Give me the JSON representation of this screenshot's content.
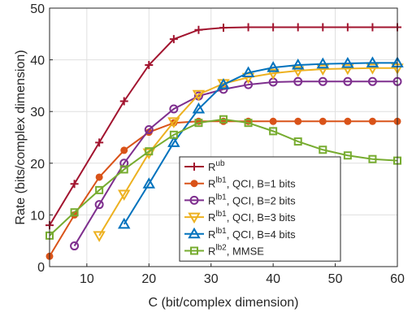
{
  "chart_data": {
    "type": "line",
    "title": "",
    "xlabel": "C (bit/complex dimension)",
    "ylabel": "Rate (bits/complex dimension)",
    "xlim": [
      4,
      60
    ],
    "ylim": [
      0,
      50
    ],
    "xticks": [
      10,
      20,
      30,
      40,
      50,
      60
    ],
    "yticks": [
      0,
      10,
      20,
      30,
      40,
      50
    ],
    "grid": true,
    "legend_position": "bottom-center",
    "series": [
      {
        "name_base": "R",
        "name_sup": "ub",
        "name_suffix": "",
        "color": "#A2142F",
        "marker": "plus",
        "x": [
          4,
          8,
          12,
          16,
          20,
          24,
          28,
          32,
          36,
          40,
          44,
          48,
          52,
          56,
          60
        ],
        "y": [
          8,
          16,
          24,
          32,
          39,
          44,
          45.8,
          46.2,
          46.3,
          46.3,
          46.3,
          46.3,
          46.3,
          46.3,
          46.3
        ]
      },
      {
        "name_base": "R",
        "name_sup": "lb1",
        "name_suffix": ", QCI, B=1 bits",
        "color": "#D95319",
        "marker": "circle-filled",
        "x": [
          4,
          8,
          12,
          16,
          20,
          24,
          28,
          32,
          36,
          40,
          44,
          48,
          52,
          56,
          60
        ],
        "y": [
          2,
          10,
          17.3,
          22.5,
          26,
          27.8,
          28.1,
          28.1,
          28.1,
          28.1,
          28.1,
          28.1,
          28.1,
          28.1,
          28.1
        ]
      },
      {
        "name_base": "R",
        "name_sup": "lb1",
        "name_suffix": ", QCI, B=2 bits",
        "color": "#7E2F8E",
        "marker": "circle",
        "x": [
          8,
          12,
          16,
          20,
          24,
          28,
          32,
          36,
          40,
          44,
          48,
          52,
          56,
          60
        ],
        "y": [
          4,
          12,
          20,
          26.5,
          30.5,
          33,
          34.3,
          35.2,
          35.7,
          35.8,
          35.8,
          35.8,
          35.8,
          35.8
        ]
      },
      {
        "name_base": "R",
        "name_sup": "lb1",
        "name_suffix": ", QCI, B=3 bits",
        "color": "#EDB120",
        "marker": "triangle-down",
        "x": [
          12,
          16,
          20,
          24,
          28,
          32,
          36,
          40,
          44,
          48,
          52,
          56,
          60
        ],
        "y": [
          6,
          14,
          22,
          28,
          33.3,
          35.4,
          36.6,
          37.4,
          37.9,
          38.2,
          38.3,
          38.4,
          38.4
        ]
      },
      {
        "name_base": "R",
        "name_sup": "lb1",
        "name_suffix": ", QCI, B=4 bits",
        "color": "#0072BD",
        "marker": "triangle-up",
        "x": [
          16,
          20,
          24,
          28,
          32,
          36,
          40,
          44,
          48,
          52,
          56,
          60
        ],
        "y": [
          8.2,
          16,
          24,
          30.5,
          35.2,
          37.5,
          38.5,
          39,
          39.2,
          39.3,
          39.4,
          39.4
        ]
      },
      {
        "name_base": "R",
        "name_sup": "lb2",
        "name_suffix": ", MMSE",
        "color": "#77AC30",
        "marker": "square",
        "x": [
          4,
          8,
          12,
          16,
          20,
          24,
          28,
          32,
          36,
          40,
          44,
          48,
          52,
          56,
          60
        ],
        "y": [
          6,
          10.5,
          14.8,
          18.8,
          22.3,
          25.5,
          27.8,
          28.5,
          27.8,
          26.2,
          24.2,
          22.6,
          21.5,
          20.8,
          20.5
        ]
      }
    ]
  }
}
